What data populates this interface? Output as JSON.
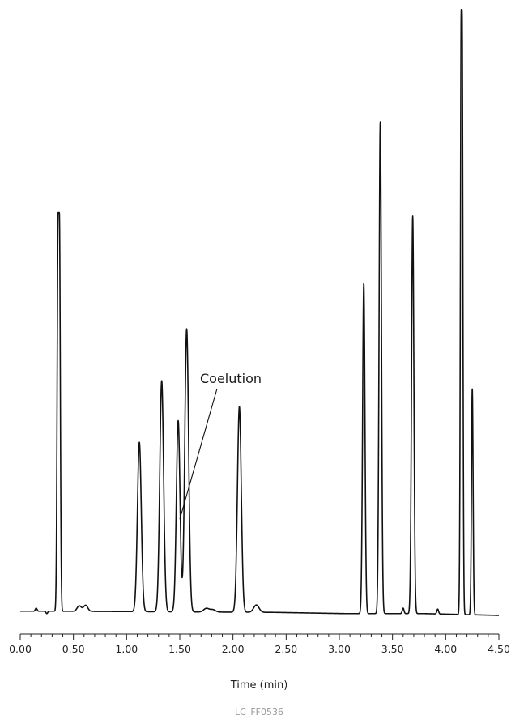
{
  "chart_data": {
    "type": "line",
    "title": "",
    "xlabel": "Time (min)",
    "ylabel": "",
    "xlim": [
      0.0,
      4.5
    ],
    "ylim": [
      0,
      100
    ],
    "grid": false,
    "x_ticks": [
      0.0,
      0.5,
      1.0,
      1.5,
      2.0,
      2.5,
      3.0,
      3.5,
      4.0,
      4.5
    ],
    "x_tick_labels": [
      "0.00",
      "0.50",
      "1.00",
      "1.50",
      "2.00",
      "2.50",
      "3.00",
      "3.50",
      "4.00",
      "4.50"
    ],
    "baseline_points": [
      [
        0.0,
        0.3
      ],
      [
        0.34,
        0.3
      ],
      [
        2.4,
        0.1
      ],
      [
        3.05,
        -0.1
      ],
      [
        3.8,
        -0.1
      ],
      [
        4.5,
        -0.4
      ]
    ],
    "peaks": [
      {
        "rt": 0.15,
        "height": 0.5,
        "width": 0.008
      },
      {
        "rt": 0.25,
        "height": -0.4,
        "width": 0.008
      },
      {
        "rt": 0.362,
        "height": 65.9,
        "width": 0.0085,
        "flat": 0.012
      },
      {
        "rt": 0.555,
        "height": 0.9,
        "width": 0.02
      },
      {
        "rt": 0.615,
        "height": 1.0,
        "width": 0.02
      },
      {
        "rt": 1.12,
        "height": 28.0,
        "width": 0.018
      },
      {
        "rt": 1.33,
        "height": 38.2,
        "width": 0.018
      },
      {
        "rt": 1.485,
        "height": 31.6,
        "width": 0.017
      },
      {
        "rt": 1.565,
        "height": 46.8,
        "width": 0.018
      },
      {
        "rt": 1.75,
        "height": 0.6,
        "width": 0.025
      },
      {
        "rt": 1.81,
        "height": 0.4,
        "width": 0.025
      },
      {
        "rt": 2.06,
        "height": 34.0,
        "width": 0.018
      },
      {
        "rt": 2.22,
        "height": 1.2,
        "width": 0.025
      },
      {
        "rt": 3.23,
        "height": 54.6,
        "width": 0.011
      },
      {
        "rt": 3.385,
        "height": 81.3,
        "width": 0.011
      },
      {
        "rt": 3.6,
        "height": 0.9,
        "width": 0.008
      },
      {
        "rt": 3.69,
        "height": 65.7,
        "width": 0.011
      },
      {
        "rt": 3.925,
        "height": 0.8,
        "width": 0.008
      },
      {
        "rt": 4.15,
        "height": 100.0,
        "width": 0.0075,
        "flat": 0.008
      },
      {
        "rt": 4.25,
        "height": 37.4,
        "width": 0.0075
      }
    ],
    "annotations": [
      {
        "text": "Coelution",
        "x": 1.5,
        "y": 15.5
      }
    ]
  },
  "figure_id": "LC_FF0536"
}
